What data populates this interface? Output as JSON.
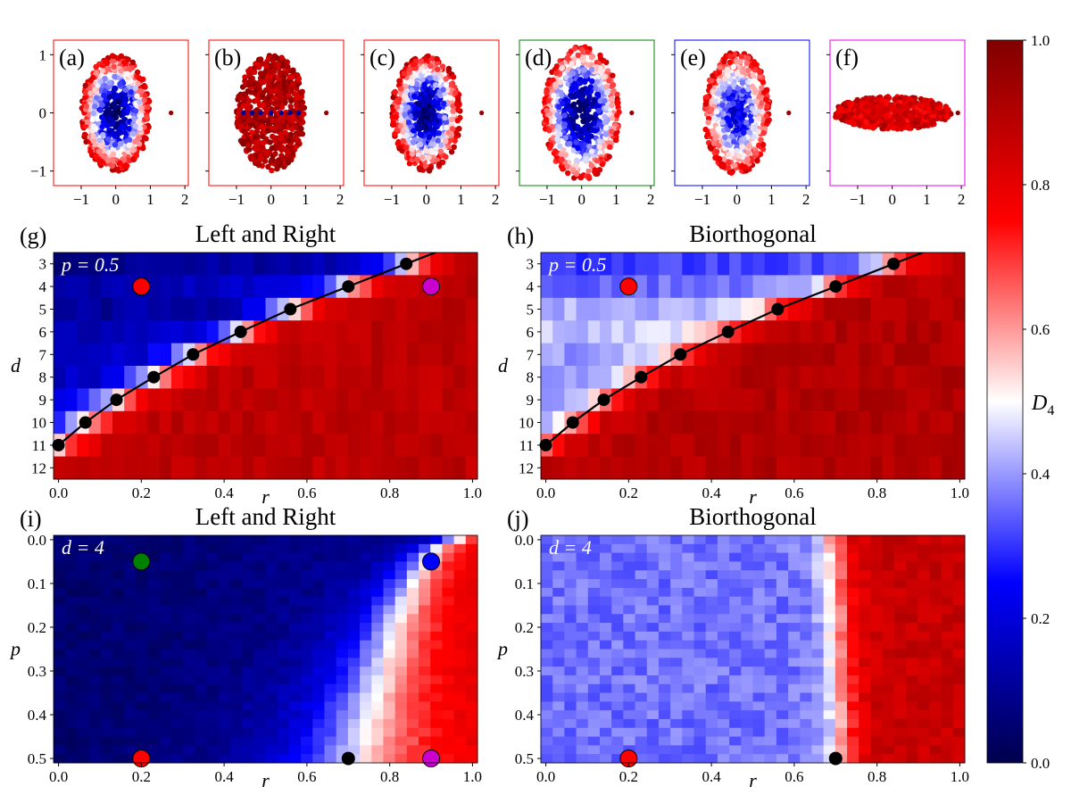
{
  "colormap": {
    "name": "seismic",
    "stops": [
      "#00004c",
      "#0000ff",
      "#ffffff",
      "#ff0000",
      "#800000"
    ],
    "colorbar_label": "D_4",
    "ticks": [
      0.0,
      0.2,
      0.4,
      0.6,
      0.8,
      1.0
    ],
    "tick_labels": [
      "0.0",
      "0.2",
      "0.4",
      "0.6",
      "0.8",
      "1.0"
    ]
  },
  "chart_data": [
    {
      "id": "a",
      "type": "scatter",
      "panel_label": "(a)",
      "frame_color": "#ff0000",
      "xlim": [
        -1.8,
        2.1
      ],
      "ylim": [
        -1.25,
        1.25
      ],
      "xticks": [
        -1,
        0,
        1,
        2
      ],
      "xtick_labels": [
        "−1",
        "0",
        "1",
        "2"
      ],
      "yticks": [
        -1,
        0,
        1
      ],
      "ytick_labels": [
        "−1",
        "0",
        "1"
      ],
      "cloud": {
        "rx": 1.0,
        "ry": 1.0,
        "inner_value": 0.05,
        "outer_value": 0.85,
        "layout": "filled-ellipse"
      },
      "outlier": {
        "x": 1.6,
        "y": 0.0,
        "value": 0.95
      }
    },
    {
      "id": "b",
      "type": "scatter",
      "panel_label": "(b)",
      "frame_color": "#ff0000",
      "xlim": [
        -1.8,
        2.1
      ],
      "ylim": [
        -1.25,
        1.25
      ],
      "xticks": [
        -1,
        0,
        1,
        2
      ],
      "xtick_labels": [
        "−1",
        "0",
        "1",
        "2"
      ],
      "yticks": [
        -1,
        0,
        1
      ],
      "ytick_labels": [
        "",
        "",
        ""
      ],
      "cloud": {
        "rx": 1.0,
        "ry": 1.0,
        "inner_value": 0.9,
        "outer_value": 0.9,
        "layout": "filled-ellipse"
      },
      "line_points": {
        "x": [
          -0.8,
          -0.55,
          -0.3,
          0.0,
          0.3,
          0.55,
          0.8
        ],
        "y": 0.0,
        "value": 0.1
      },
      "outlier": {
        "x": 1.6,
        "y": 0.0,
        "value": 0.95
      }
    },
    {
      "id": "c",
      "type": "scatter",
      "panel_label": "(c)",
      "frame_color": "#ff0000",
      "xlim": [
        -1.8,
        2.1
      ],
      "ylim": [
        -1.25,
        1.25
      ],
      "xticks": [
        -1,
        0,
        1,
        2
      ],
      "xtick_labels": [
        "−1",
        "0",
        "1",
        "2"
      ],
      "yticks": [
        -1,
        0,
        1
      ],
      "ytick_labels": [
        "",
        "",
        ""
      ],
      "cloud": {
        "rx": 1.0,
        "ry": 1.0,
        "inner_value": 0.05,
        "outer_value": 0.85,
        "layout": "filled-ellipse"
      },
      "outlier": {
        "x": 1.6,
        "y": 0.0,
        "value": 0.95
      }
    },
    {
      "id": "d",
      "type": "scatter",
      "panel_label": "(d)",
      "frame_color": "#008000",
      "xlim": [
        -1.8,
        2.1
      ],
      "ylim": [
        -1.25,
        1.25
      ],
      "xticks": [
        -1,
        0,
        1,
        2
      ],
      "xtick_labels": [
        "−1",
        "0",
        "1",
        "2"
      ],
      "yticks": [
        -1,
        0,
        1
      ],
      "ytick_labels": [
        "",
        "",
        ""
      ],
      "cloud": {
        "rx": 1.1,
        "ry": 1.15,
        "inner_value": 0.02,
        "outer_value": 0.8,
        "layout": "filled-ellipse"
      },
      "outlier": {
        "x": 1.45,
        "y": 0.0,
        "value": 0.95
      }
    },
    {
      "id": "e",
      "type": "scatter",
      "panel_label": "(e)",
      "frame_color": "#0000ff",
      "xlim": [
        -1.8,
        2.1
      ],
      "ylim": [
        -1.25,
        1.25
      ],
      "xticks": [
        -1,
        0,
        1,
        2
      ],
      "xtick_labels": [
        "−1",
        "0",
        "1",
        "2"
      ],
      "yticks": [
        -1,
        0,
        1
      ],
      "ytick_labels": [
        "",
        "",
        ""
      ],
      "cloud": {
        "rx": 0.95,
        "ry": 1.05,
        "inner_value": 0.2,
        "outer_value": 0.8,
        "layout": "filled-ellipse"
      },
      "outlier": {
        "x": 1.5,
        "y": 0.0,
        "value": 0.95
      }
    },
    {
      "id": "f",
      "type": "scatter",
      "panel_label": "(f)",
      "frame_color": "#ee00ee",
      "xlim": [
        -1.8,
        2.1
      ],
      "ylim": [
        -1.25,
        1.25
      ],
      "xticks": [
        -1,
        0,
        1,
        2
      ],
      "xtick_labels": [
        "−1",
        "0",
        "1",
        "2"
      ],
      "yticks": [
        -1,
        0,
        1
      ],
      "ytick_labels": [
        "",
        "",
        ""
      ],
      "cloud": {
        "rx": 1.7,
        "ry": 0.28,
        "inner_value": 0.8,
        "outer_value": 0.85,
        "layout": "filled-ellipse"
      },
      "outlier": {
        "x": 1.9,
        "y": 0.0,
        "value": 0.98
      }
    },
    {
      "id": "g",
      "type": "heatmap",
      "panel_label": "(g)",
      "title": "Left and Right",
      "annotation": "p = 0.5",
      "xlabel": "r",
      "ylabel": "d",
      "xlim": [
        0.0,
        1.0
      ],
      "x_cells": 36,
      "rows": [
        3,
        4,
        5,
        6,
        7,
        8,
        9,
        10,
        11,
        12
      ],
      "xticks": [
        0.0,
        0.2,
        0.4,
        0.6,
        0.8,
        1.0
      ],
      "xtick_labels": [
        "0.0",
        "0.2",
        "0.4",
        "0.6",
        "0.8",
        "1.0"
      ],
      "low_value": [
        0.08,
        0.12,
        0.1,
        0.13,
        0.15,
        0.16,
        0.18,
        0.2,
        0.25,
        0.8
      ],
      "high_value": 0.88,
      "transition_width": 0.04,
      "boundary": {
        "r": [
          0.0,
          0.065,
          0.14,
          0.23,
          0.325,
          0.44,
          0.56,
          0.7,
          0.84
        ],
        "d": [
          11,
          10,
          9,
          8,
          7,
          6,
          5,
          4,
          3
        ]
      },
      "markers": [
        {
          "r": 0.2,
          "d": 4,
          "color": "#ff0000"
        },
        {
          "r": 0.9,
          "d": 4,
          "color": "#cc00cc"
        }
      ]
    },
    {
      "id": "h",
      "type": "heatmap",
      "panel_label": "(h)",
      "title": "Biorthogonal",
      "annotation": "p = 0.5",
      "xlabel": "r",
      "ylabel": "d",
      "xlim": [
        0.0,
        1.0
      ],
      "x_cells": 36,
      "rows": [
        3,
        4,
        5,
        6,
        7,
        8,
        9,
        10,
        11,
        12
      ],
      "xticks": [
        0.0,
        0.2,
        0.4,
        0.6,
        0.8,
        1.0
      ],
      "xtick_labels": [
        "0.0",
        "0.2",
        "0.4",
        "0.6",
        "0.8",
        "1.0"
      ],
      "low_value": [
        0.3,
        0.35,
        0.42,
        0.44,
        0.4,
        0.38,
        0.36,
        0.36,
        0.4,
        0.85
      ],
      "high_value": 0.9,
      "transition_width": 0.04,
      "boundary": {
        "r": [
          0.0,
          0.065,
          0.14,
          0.23,
          0.325,
          0.44,
          0.56,
          0.7,
          0.84
        ],
        "d": [
          11,
          10,
          9,
          8,
          7,
          6,
          5,
          4,
          3
        ]
      },
      "markers": [
        {
          "r": 0.2,
          "d": 4,
          "color": "#ff0000"
        }
      ]
    },
    {
      "id": "i",
      "type": "heatmap",
      "panel_label": "(i)",
      "title": "Left and Right",
      "annotation": "d = 4",
      "xlabel": "r",
      "ylabel": "p",
      "xlim": [
        0.0,
        1.0
      ],
      "ylim": [
        0.0,
        0.5
      ],
      "x_cells": 36,
      "y_cells": 26,
      "yticks": [
        0.0,
        0.1,
        0.2,
        0.3,
        0.4,
        0.5
      ],
      "ytick_labels": [
        "0.0",
        "0.1",
        "0.2",
        "0.3",
        "0.4",
        "0.5"
      ],
      "xticks": [
        0.0,
        0.2,
        0.4,
        0.6,
        0.8,
        1.0
      ],
      "xtick_labels": [
        "0.0",
        "0.2",
        "0.4",
        "0.6",
        "0.8",
        "1.0"
      ],
      "threshold": {
        "top": 0.96,
        "bottom": 0.72
      },
      "markers": [
        {
          "r": 0.2,
          "p": 0.05,
          "color": "#008000"
        },
        {
          "r": 0.9,
          "p": 0.05,
          "color": "#0000ff"
        },
        {
          "r": 0.2,
          "p": 0.5,
          "color": "#ff0000"
        },
        {
          "r": 0.9,
          "p": 0.5,
          "color": "#cc00cc"
        },
        {
          "r": 0.7,
          "p": 0.5,
          "color": "#000000",
          "small": true
        }
      ]
    },
    {
      "id": "j",
      "type": "heatmap",
      "panel_label": "(j)",
      "title": "Biorthogonal",
      "annotation": "d = 4",
      "xlabel": "r",
      "ylabel": "p",
      "xlim": [
        0.0,
        1.0
      ],
      "ylim": [
        0.0,
        0.5
      ],
      "x_cells": 36,
      "y_cells": 26,
      "yticks": [
        0.0,
        0.1,
        0.2,
        0.3,
        0.4,
        0.5
      ],
      "ytick_labels": [
        "0.0",
        "0.1",
        "0.2",
        "0.3",
        "0.4",
        "0.5"
      ],
      "xticks": [
        0.0,
        0.2,
        0.4,
        0.6,
        0.8,
        1.0
      ],
      "xtick_labels": [
        "0.0",
        "0.2",
        "0.4",
        "0.6",
        "0.8",
        "1.0"
      ],
      "threshold": {
        "top": 0.69,
        "bottom": 0.72
      },
      "markers": [
        {
          "r": 0.2,
          "p": 0.5,
          "color": "#ff0000"
        },
        {
          "r": 0.7,
          "p": 0.5,
          "color": "#000000",
          "small": true
        }
      ]
    }
  ]
}
